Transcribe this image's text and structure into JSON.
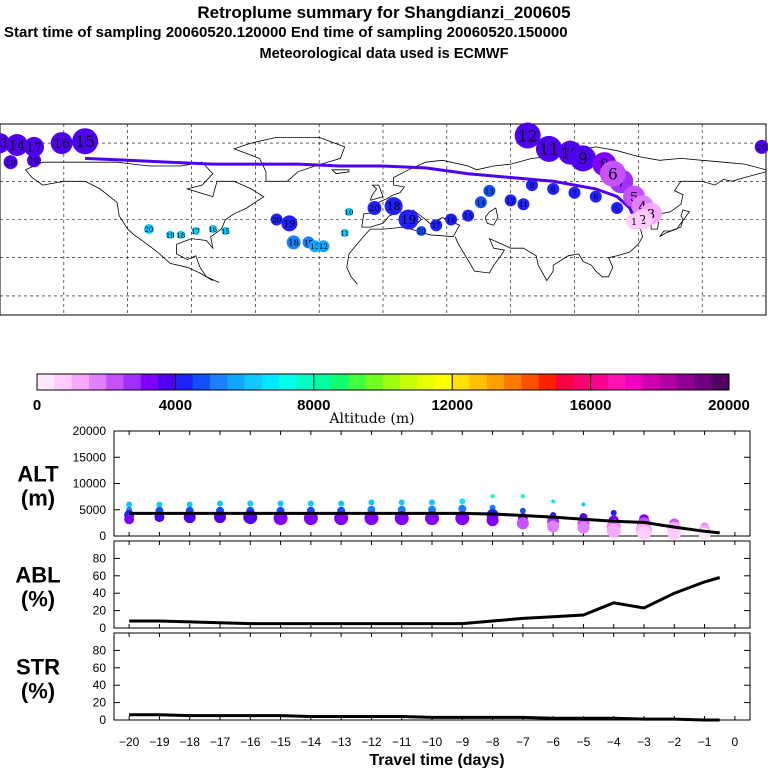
{
  "header": {
    "title": "Retroplume summary for Shangdianzi_200605",
    "line2": "Start time of sampling 20060520.120000     End time of sampling 20060520.150000",
    "line3": "Meteorological data used is ECMWF"
  },
  "chart_data": [
    {
      "type": "scatter",
      "name": "retroplume-map",
      "description_labels": [
        "20",
        "19",
        "18",
        "17",
        "16",
        "15",
        "14",
        "13",
        "12",
        "11",
        "10",
        "9",
        "8",
        "7",
        "6",
        "5",
        "4",
        "3",
        "2",
        "1"
      ],
      "clusters": [
        {
          "label": "13",
          "lon": -180,
          "lat": 80,
          "alt": 3600,
          "size": 10
        },
        {
          "label": "14",
          "lon": -172,
          "lat": 79,
          "alt": 3700,
          "size": 11
        },
        {
          "label": "17",
          "lon": -164,
          "lat": 78,
          "alt": 3600,
          "size": 10
        },
        {
          "label": "16",
          "lon": -151,
          "lat": 80,
          "alt": 3700,
          "size": 11
        },
        {
          "label": "15",
          "lon": -140,
          "lat": 81,
          "alt": 3600,
          "size": 13
        },
        {
          "label": "19",
          "lon": -175,
          "lat": 70,
          "alt": 3500,
          "size": 7
        },
        {
          "label": "19",
          "lon": -164,
          "lat": 71,
          "alt": 3500,
          "size": 7
        },
        {
          "label": "20",
          "lon": -110,
          "lat": 35,
          "alt": 6200,
          "size": 5
        },
        {
          "label": "19",
          "lon": -100,
          "lat": 32,
          "alt": 6200,
          "size": 4
        },
        {
          "label": "18",
          "lon": -95,
          "lat": 32,
          "alt": 6200,
          "size": 4
        },
        {
          "label": "17",
          "lon": -88,
          "lat": 34,
          "alt": 6200,
          "size": 4
        },
        {
          "label": "16",
          "lon": -80,
          "lat": 35,
          "alt": 6300,
          "size": 4
        },
        {
          "label": "15",
          "lon": -74,
          "lat": 34,
          "alt": 6300,
          "size": 4
        },
        {
          "label": "20",
          "lon": -50,
          "lat": 40,
          "alt": 4200,
          "size": 6
        },
        {
          "label": "19",
          "lon": -44,
          "lat": 38,
          "alt": 4200,
          "size": 8
        },
        {
          "label": "18",
          "lon": -42,
          "lat": 28,
          "alt": 5200,
          "size": 7
        },
        {
          "label": "15",
          "lon": -35,
          "lat": 28,
          "alt": 5400,
          "size": 6
        },
        {
          "label": "13",
          "lon": -32,
          "lat": 26,
          "alt": 5600,
          "size": 6
        },
        {
          "label": "12",
          "lon": -28,
          "lat": 26,
          "alt": 5600,
          "size": 6
        },
        {
          "label": "11",
          "lon": -18,
          "lat": 33,
          "alt": 6400,
          "size": 4
        },
        {
          "label": "10",
          "lon": -16,
          "lat": 44,
          "alt": 6300,
          "size": 4
        },
        {
          "label": "20",
          "lon": -4,
          "lat": 46,
          "alt": 4200,
          "size": 7
        },
        {
          "label": "18",
          "lon": 5,
          "lat": 47,
          "alt": 4000,
          "size": 9
        },
        {
          "label": "19",
          "lon": 12,
          "lat": 40,
          "alt": 4000,
          "size": 10
        },
        {
          "label": "20",
          "lon": 18,
          "lat": 34,
          "alt": 4500,
          "size": 5
        },
        {
          "label": "17",
          "lon": 25,
          "lat": 37,
          "alt": 4200,
          "size": 6
        },
        {
          "label": "16",
          "lon": 32,
          "lat": 40,
          "alt": 4100,
          "size": 6
        },
        {
          "label": "15",
          "lon": 40,
          "lat": 42,
          "alt": 4000,
          "size": 6
        },
        {
          "label": "14",
          "lon": 46,
          "lat": 49,
          "alt": 4500,
          "size": 6
        },
        {
          "label": "13",
          "lon": 50,
          "lat": 55,
          "alt": 4600,
          "size": 6
        },
        {
          "label": "12",
          "lon": 60,
          "lat": 50,
          "alt": 4300,
          "size": 6
        },
        {
          "label": "11",
          "lon": 66,
          "lat": 48,
          "alt": 4200,
          "size": 6
        },
        {
          "label": "12",
          "lon": 68,
          "lat": 84,
          "alt": 3600,
          "size": 13
        },
        {
          "label": "11",
          "lon": 78,
          "lat": 77,
          "alt": 3600,
          "size": 13
        },
        {
          "label": "10",
          "lon": 88,
          "lat": 75,
          "alt": 3600,
          "size": 12
        },
        {
          "label": "9",
          "lon": 94,
          "lat": 72,
          "alt": 3500,
          "size": 13
        },
        {
          "label": "8",
          "lon": 104,
          "lat": 69,
          "alt": 3100,
          "size": 12
        },
        {
          "label": "7",
          "lon": 112,
          "lat": 60,
          "alt": 2800,
          "size": 12
        },
        {
          "label": "6",
          "lon": 108,
          "lat": 64,
          "alt": 2400,
          "size": 13
        },
        {
          "label": "5",
          "lon": 118,
          "lat": 52,
          "alt": 2200,
          "size": 11
        },
        {
          "label": "4",
          "lon": 122,
          "lat": 47,
          "alt": 1800,
          "size": 11
        },
        {
          "label": "3",
          "lon": 126,
          "lat": 43,
          "alt": 1300,
          "size": 11
        },
        {
          "label": "2",
          "lon": 122,
          "lat": 40,
          "alt": 900,
          "size": 10
        },
        {
          "label": "1",
          "lon": 118,
          "lat": 39,
          "alt": 600,
          "size": 8
        },
        {
          "label": "20",
          "lon": 178,
          "lat": 78,
          "alt": 3600,
          "size": 7
        },
        {
          "label": "9",
          "lon": 70,
          "lat": 58,
          "alt": 4200,
          "size": 6
        },
        {
          "label": "8",
          "lon": 80,
          "lat": 56,
          "alt": 4000,
          "size": 6
        },
        {
          "label": "7",
          "lon": 90,
          "lat": 54,
          "alt": 4000,
          "size": 6
        },
        {
          "label": "6",
          "lon": 100,
          "lat": 52,
          "alt": 4100,
          "size": 6
        },
        {
          "label": "5",
          "lon": 110,
          "lat": 46,
          "alt": 4300,
          "size": 6
        }
      ],
      "track": [
        [
          -140,
          72
        ],
        [
          -120,
          71
        ],
        [
          -100,
          70
        ],
        [
          -80,
          69
        ],
        [
          -60,
          69
        ],
        [
          -40,
          69
        ],
        [
          -20,
          68
        ],
        [
          0,
          68
        ],
        [
          20,
          67
        ],
        [
          40,
          64
        ],
        [
          60,
          62
        ],
        [
          80,
          60
        ],
        [
          100,
          56
        ],
        [
          110,
          52
        ],
        [
          116,
          46
        ],
        [
          118,
          41
        ]
      ],
      "track_alt": 3900
    },
    {
      "type": "colorbar",
      "title": "Altitude (m)",
      "min": 0,
      "max": 20000,
      "tick_labels": [
        "0",
        "4000",
        "8000",
        "12000",
        "16000",
        "20000"
      ],
      "colors": [
        "#ffe8ff",
        "#ffccff",
        "#f5aaff",
        "#e080ff",
        "#c850ff",
        "#a030ff",
        "#8000ff",
        "#5000f0",
        "#2020ff",
        "#1050ff",
        "#1a80ff",
        "#10a8ff",
        "#10c8ff",
        "#00e8ff",
        "#00ffe8",
        "#00ffc0",
        "#00ffa0",
        "#10ff70",
        "#40ff40",
        "#70ff20",
        "#a0ff10",
        "#c8ff00",
        "#e8ff00",
        "#ffff00",
        "#ffe000",
        "#ffc000",
        "#ffa000",
        "#ff7800",
        "#ff5000",
        "#ff2000",
        "#ff0040",
        "#ff0070",
        "#ff0090",
        "#ff10b0",
        "#f000c0",
        "#d000b0",
        "#b000a0",
        "#900090",
        "#700080",
        "#500060"
      ]
    },
    {
      "type": "scatter-line",
      "name": "alt-panel",
      "ylabel": "ALT\n(m)",
      "ylabel_line1": "ALT",
      "ylabel_line2": "(m)",
      "ylim": [
        0,
        20000
      ],
      "yticks": [
        "20000",
        "15000",
        "10000",
        "5000",
        "0"
      ],
      "x": [
        -20,
        -19,
        -18,
        -17,
        -16,
        -15,
        -14,
        -13,
        -12,
        -11,
        -10,
        -9,
        -8,
        -7,
        -6,
        -5,
        -4,
        -3,
        -2,
        -1,
        -0.5
      ],
      "line": [
        4300,
        4300,
        4300,
        4300,
        4300,
        4300,
        4300,
        4300,
        4300,
        4300,
        4300,
        4300,
        4200,
        3900,
        3600,
        3200,
        2800,
        2600,
        1700,
        900,
        600
      ],
      "points": [
        {
          "x": -20,
          "y": 6000,
          "s": 3
        },
        {
          "x": -20,
          "y": 5000,
          "s": 3
        },
        {
          "x": -20,
          "y": 4000,
          "s": 5
        },
        {
          "x": -20,
          "y": 3200,
          "s": 5
        },
        {
          "x": -19,
          "y": 6000,
          "s": 3
        },
        {
          "x": -19,
          "y": 4800,
          "s": 4
        },
        {
          "x": -19,
          "y": 3600,
          "s": 5
        },
        {
          "x": -18,
          "y": 6000,
          "s": 3
        },
        {
          "x": -18,
          "y": 4800,
          "s": 4
        },
        {
          "x": -18,
          "y": 3600,
          "s": 6
        },
        {
          "x": -17,
          "y": 6200,
          "s": 3
        },
        {
          "x": -17,
          "y": 4800,
          "s": 4
        },
        {
          "x": -17,
          "y": 3600,
          "s": 6
        },
        {
          "x": -16,
          "y": 6200,
          "s": 3
        },
        {
          "x": -16,
          "y": 4800,
          "s": 4
        },
        {
          "x": -16,
          "y": 3600,
          "s": 7
        },
        {
          "x": -15,
          "y": 6200,
          "s": 3
        },
        {
          "x": -15,
          "y": 4800,
          "s": 4
        },
        {
          "x": -15,
          "y": 3400,
          "s": 7
        },
        {
          "x": -14,
          "y": 6200,
          "s": 3
        },
        {
          "x": -14,
          "y": 4800,
          "s": 4
        },
        {
          "x": -14,
          "y": 3400,
          "s": 7
        },
        {
          "x": -13,
          "y": 6200,
          "s": 3
        },
        {
          "x": -13,
          "y": 4800,
          "s": 4
        },
        {
          "x": -13,
          "y": 3400,
          "s": 7
        },
        {
          "x": -12,
          "y": 6400,
          "s": 3
        },
        {
          "x": -12,
          "y": 5000,
          "s": 4
        },
        {
          "x": -12,
          "y": 3400,
          "s": 7
        },
        {
          "x": -11,
          "y": 6400,
          "s": 3
        },
        {
          "x": -11,
          "y": 5000,
          "s": 4
        },
        {
          "x": -11,
          "y": 3400,
          "s": 7
        },
        {
          "x": -10,
          "y": 6400,
          "s": 3
        },
        {
          "x": -10,
          "y": 5000,
          "s": 4
        },
        {
          "x": -10,
          "y": 3400,
          "s": 7
        },
        {
          "x": -9,
          "y": 6600,
          "s": 3
        },
        {
          "x": -9,
          "y": 5200,
          "s": 4
        },
        {
          "x": -9,
          "y": 3400,
          "s": 7
        },
        {
          "x": -8,
          "y": 7600,
          "s": 2
        },
        {
          "x": -8,
          "y": 5400,
          "s": 3
        },
        {
          "x": -8,
          "y": 4000,
          "s": 6
        },
        {
          "x": -8,
          "y": 3000,
          "s": 6
        },
        {
          "x": -7,
          "y": 7600,
          "s": 2
        },
        {
          "x": -7,
          "y": 4800,
          "s": 3
        },
        {
          "x": -7,
          "y": 3400,
          "s": 5
        },
        {
          "x": -7,
          "y": 2400,
          "s": 6
        },
        {
          "x": -6,
          "y": 6600,
          "s": 2
        },
        {
          "x": -6,
          "y": 4000,
          "s": 3
        },
        {
          "x": -6,
          "y": 2800,
          "s": 6
        },
        {
          "x": -6,
          "y": 1800,
          "s": 6
        },
        {
          "x": -5,
          "y": 6000,
          "s": 2
        },
        {
          "x": -5,
          "y": 3600,
          "s": 4
        },
        {
          "x": -5,
          "y": 2400,
          "s": 6
        },
        {
          "x": -5,
          "y": 1600,
          "s": 6
        },
        {
          "x": -4,
          "y": 4400,
          "s": 3
        },
        {
          "x": -4,
          "y": 3000,
          "s": 5
        },
        {
          "x": -4,
          "y": 1800,
          "s": 7
        },
        {
          "x": -4,
          "y": 1000,
          "s": 7
        },
        {
          "x": -3,
          "y": 3200,
          "s": 5
        },
        {
          "x": -3,
          "y": 2200,
          "s": 7
        },
        {
          "x": -3,
          "y": 1200,
          "s": 8
        },
        {
          "x": -3,
          "y": 600,
          "s": 7
        },
        {
          "x": -2,
          "y": 2400,
          "s": 5
        },
        {
          "x": -2,
          "y": 1400,
          "s": 7
        },
        {
          "x": -2,
          "y": 600,
          "s": 7
        },
        {
          "x": -1,
          "y": 1800,
          "s": 4
        },
        {
          "x": -1,
          "y": 1000,
          "s": 6
        },
        {
          "x": -1,
          "y": 400,
          "s": 6
        }
      ]
    },
    {
      "type": "line",
      "name": "abl-panel",
      "ylabel_line1": "ABL",
      "ylabel_line2": "(%)",
      "ylim": [
        0,
        100
      ],
      "yticks": [
        "80",
        "60",
        "40",
        "20",
        "0"
      ],
      "x": [
        -20,
        -19,
        -18,
        -17,
        -16,
        -15,
        -14,
        -13,
        -12,
        -11,
        -10,
        -9,
        -8,
        -7,
        -6,
        -5,
        -4,
        -3,
        -2,
        -1,
        -0.5
      ],
      "values": [
        8,
        8,
        7,
        6,
        5,
        5,
        5,
        5,
        5,
        5,
        5,
        5,
        8,
        11,
        13,
        15,
        29,
        23,
        40,
        53,
        58
      ]
    },
    {
      "type": "line",
      "name": "str-panel",
      "ylabel_line1": "STR",
      "ylabel_line2": "(%)",
      "ylim": [
        0,
        100
      ],
      "yticks": [
        "80",
        "60",
        "40",
        "20",
        "0"
      ],
      "x": [
        -20,
        -19,
        -18,
        -17,
        -16,
        -15,
        -14,
        -13,
        -12,
        -11,
        -10,
        -9,
        -8,
        -7,
        -6,
        -5,
        -4,
        -3,
        -2,
        -1,
        -0.5
      ],
      "values": [
        6,
        6,
        5,
        5,
        5,
        5,
        4,
        4,
        4,
        4,
        3,
        3,
        3,
        3,
        2,
        2,
        2,
        1,
        1,
        0,
        0
      ]
    }
  ],
  "xaxis": {
    "ticks": [
      "−20",
      "−19",
      "−18",
      "−17",
      "−16",
      "−15",
      "−14",
      "−13",
      "−12",
      "−11",
      "−10",
      "−9",
      "−8",
      "−7",
      "−6",
      "−5",
      "−4",
      "−3",
      "−2",
      "−1",
      "0"
    ],
    "label": "Travel time (days)"
  }
}
